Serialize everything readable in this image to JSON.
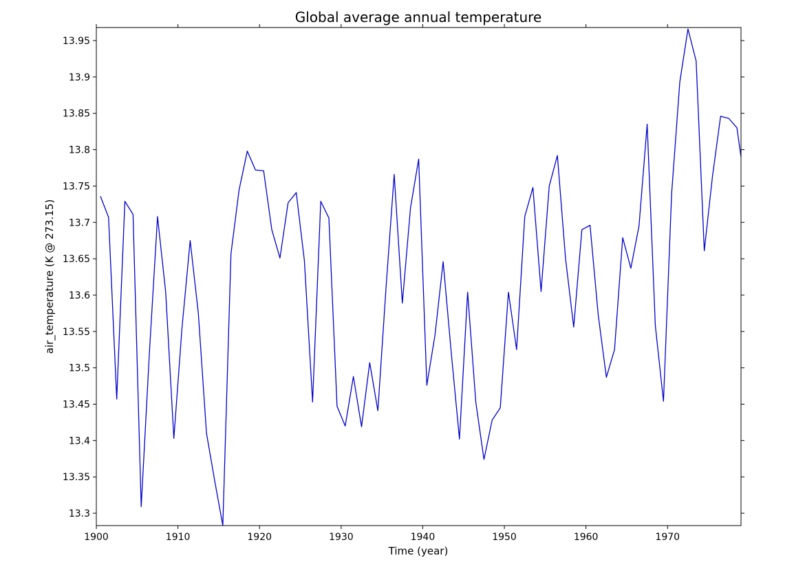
{
  "chart_data": {
    "type": "line",
    "title": "Global average annual temperature",
    "xlabel": "Time (year)",
    "ylabel": "air_temperature (K @ 273.15)",
    "xlim": [
      1900,
      1979
    ],
    "ylim": [
      13.283,
      13.968
    ],
    "xticks": [
      1900,
      1910,
      1920,
      1930,
      1940,
      1950,
      1960,
      1970
    ],
    "xtick_labels": [
      "1900",
      "1910",
      "1920",
      "1930",
      "1940",
      "1950",
      "1960",
      "1970"
    ],
    "yticks": [
      13.3,
      13.35,
      13.4,
      13.45,
      13.5,
      13.55,
      13.6,
      13.65,
      13.7,
      13.75,
      13.8,
      13.85,
      13.9,
      13.95
    ],
    "ytick_labels": [
      "13.3",
      "13.35",
      "13.4",
      "13.45",
      "13.5",
      "13.55",
      "13.6",
      "13.65",
      "13.7",
      "13.75",
      "13.8",
      "13.85",
      "13.9",
      "13.95"
    ],
    "grid": false,
    "series": [
      {
        "name": "air_temperature",
        "color": "#0000cc",
        "x": [
          1900.5,
          1901.5,
          1902.5,
          1903.5,
          1904.5,
          1905.5,
          1906.5,
          1907.5,
          1908.5,
          1909.5,
          1910.5,
          1911.5,
          1912.5,
          1913.5,
          1914.5,
          1915.5,
          1916.5,
          1917.5,
          1918.5,
          1919.5,
          1920.5,
          1921.5,
          1922.5,
          1923.5,
          1924.5,
          1925.5,
          1926.5,
          1927.5,
          1928.5,
          1929.5,
          1930.5,
          1931.5,
          1932.5,
          1933.5,
          1934.5,
          1935.5,
          1936.5,
          1937.5,
          1938.5,
          1939.5,
          1940.5,
          1941.5,
          1942.5,
          1943.5,
          1944.5,
          1945.5,
          1946.5,
          1947.5,
          1948.5,
          1949.5,
          1950.5,
          1951.5,
          1952.5,
          1953.5,
          1954.5,
          1955.5,
          1956.5,
          1957.5,
          1958.5,
          1959.5,
          1960.5,
          1961.5,
          1962.5,
          1963.5,
          1964.5,
          1965.5,
          1966.5,
          1967.5,
          1968.5,
          1969.5,
          1970.5,
          1971.5,
          1972.5,
          1973.5,
          1974.5,
          1975.5,
          1976.5,
          1977.5,
          1978.5,
          1979.0
        ],
        "values": [
          13.736,
          13.707,
          13.457,
          13.729,
          13.711,
          13.309,
          13.52,
          13.708,
          13.604,
          13.403,
          13.555,
          13.675,
          13.575,
          13.41,
          13.345,
          13.283,
          13.657,
          13.745,
          13.798,
          13.772,
          13.771,
          13.69,
          13.651,
          13.727,
          13.741,
          13.647,
          13.453,
          13.729,
          13.706,
          13.447,
          13.42,
          13.488,
          13.419,
          13.507,
          13.441,
          13.61,
          13.766,
          13.589,
          13.72,
          13.787,
          13.476,
          13.545,
          13.646,
          13.52,
          13.402,
          13.604,
          13.453,
          13.374,
          13.428,
          13.445,
          13.604,
          13.525,
          13.708,
          13.748,
          13.605,
          13.75,
          13.792,
          13.65,
          13.556,
          13.69,
          13.696,
          13.573,
          13.487,
          13.525,
          13.679,
          13.637,
          13.695,
          13.835,
          13.558,
          13.454,
          13.74,
          13.893,
          13.966,
          13.922,
          13.661,
          13.763,
          13.846,
          13.843,
          13.83,
          13.79
        ]
      }
    ]
  }
}
